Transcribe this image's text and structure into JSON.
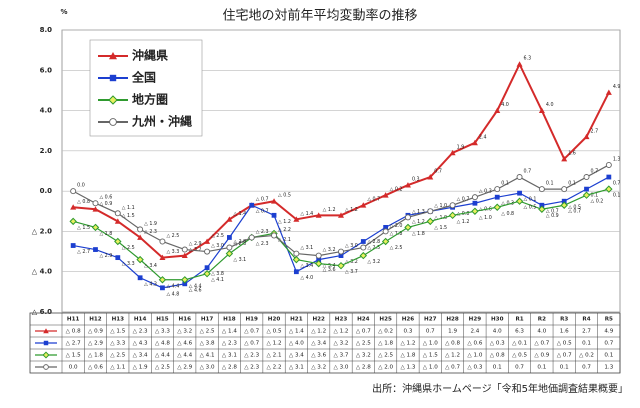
{
  "chart_data": {
    "type": "line",
    "title": "住宅地の対前年平均変動率の推移",
    "y_unit": "%",
    "source": "出所：沖縄県ホームページ「令和5年地価調査結果概要」",
    "categories": [
      "H11",
      "H12",
      "H13",
      "H14",
      "H15",
      "H16",
      "H17",
      "H18",
      "H19",
      "H20",
      "H21",
      "H22",
      "H23",
      "H24",
      "H25",
      "H26",
      "H27",
      "H28",
      "H29",
      "H30",
      "R1",
      "R2",
      "R3",
      "R4",
      "R5"
    ],
    "ylim": [
      -6,
      8
    ],
    "yticks": [
      {
        "value": -6,
        "label": "△ 6.0"
      },
      {
        "value": -4,
        "label": "△ 4.0"
      },
      {
        "value": -2,
        "label": "△ 2.0"
      },
      {
        "value": 0,
        "label": "0.0"
      },
      {
        "value": 2,
        "label": "2.0"
      },
      {
        "value": 4,
        "label": "4.0"
      },
      {
        "value": 6,
        "label": "6.0"
      },
      {
        "value": 8,
        "label": "8.0"
      }
    ],
    "grid": true,
    "series": [
      {
        "name": "沖縄県",
        "color": "#d42a2a",
        "marker": "triangle",
        "values": [
          -0.8,
          -0.9,
          -1.5,
          -2.3,
          -3.3,
          -3.2,
          -2.5,
          -1.4,
          -0.7,
          -0.5,
          -1.4,
          -1.2,
          -1.2,
          -0.7,
          -0.2,
          0.3,
          0.7,
          1.9,
          2.4,
          4.0,
          6.3,
          4.0,
          1.6,
          2.7,
          4.9
        ],
        "value_labels": [
          "△ 0.8",
          "△ 0.9",
          "△ 1.5",
          "△ 2.3",
          "△ 3.3",
          "△ 3.2",
          "△ 2.5",
          "△ 1.4",
          "△ 0.7",
          "△ 0.5",
          "△ 1.4",
          "△ 1.2",
          "△ 1.2",
          "△ 0.7",
          "△ 0.2",
          "0.3",
          "0.7",
          "1.9",
          "2.4",
          "4.0",
          "6.3",
          "4.0",
          "1.6",
          "2.7",
          "4.9"
        ]
      },
      {
        "name": "全国",
        "color": "#1c3fd0",
        "marker": "square",
        "values": [
          -2.7,
          -2.9,
          -3.3,
          -4.3,
          -4.8,
          -4.6,
          -3.8,
          -2.3,
          -0.7,
          -1.2,
          -4.0,
          -3.4,
          -3.2,
          -2.5,
          -1.8,
          -1.2,
          -1.0,
          -0.8,
          -0.6,
          -0.3,
          -0.1,
          -0.7,
          -0.5,
          0.1,
          0.7
        ],
        "value_labels": [
          "△ 2.7",
          "△ 2.9",
          "△ 3.3",
          "△ 4.3",
          "△ 4.8",
          "△ 4.6",
          "△ 3.8",
          "△ 2.3",
          "△ 0.7",
          "△ 1.2",
          "△ 4.0",
          "△ 3.4",
          "△ 3.2",
          "△ 2.5",
          "△ 1.8",
          "△ 1.2",
          "△ 1.0",
          "△ 0.8",
          "△ 0.6",
          "△ 0.3",
          "△ 0.1",
          "△ 0.7",
          "△ 0.5",
          "0.1",
          "0.7"
        ]
      },
      {
        "name": "地方圏",
        "color": "#2f9a2f",
        "marker": "diamond",
        "values": [
          -1.5,
          -1.8,
          -2.5,
          -3.4,
          -4.4,
          -4.4,
          -4.1,
          -3.1,
          -2.3,
          -2.1,
          -3.4,
          -3.6,
          -3.7,
          -3.2,
          -2.5,
          -1.8,
          -1.5,
          -1.2,
          -1.0,
          -0.8,
          -0.5,
          -0.9,
          -0.7,
          -0.2,
          0.1
        ],
        "value_labels": [
          "△ 1.5",
          "△ 1.8",
          "△ 2.5",
          "△ 3.4",
          "△ 4.4",
          "△ 4.4",
          "△ 4.1",
          "△ 3.1",
          "△ 2.3",
          "△ 2.1",
          "△ 3.4",
          "△ 3.6",
          "△ 3.7",
          "△ 3.2",
          "△ 2.5",
          "△ 1.8",
          "△ 1.5",
          "△ 1.2",
          "△ 1.0",
          "△ 0.8",
          "△ 0.5",
          "△ 0.9",
          "△ 0.7",
          "△ 0.2",
          "0.1"
        ]
      },
      {
        "name": "九州・沖縄",
        "color": "#666666",
        "marker": "circle",
        "values": [
          0.0,
          -0.6,
          -1.1,
          -1.9,
          -2.5,
          -2.9,
          -3.0,
          -2.8,
          -2.3,
          -2.2,
          -3.1,
          -3.2,
          -3.0,
          -2.8,
          -2.0,
          -1.3,
          -1.0,
          -0.7,
          -0.3,
          0.1,
          0.7,
          0.1,
          0.1,
          0.7,
          1.3
        ],
        "value_labels": [
          "0.0",
          "△ 0.6",
          "△ 1.1",
          "△ 1.9",
          "△ 2.5",
          "△ 2.9",
          "△ 3.0",
          "△ 2.8",
          "△ 2.3",
          "△ 2.2",
          "△ 3.1",
          "△ 3.2",
          "△ 3.0",
          "△ 2.8",
          "△ 2.0",
          "△ 1.3",
          "△ 1.0",
          "△ 0.7",
          "△ 0.3",
          "0.1",
          "0.7",
          "0.1",
          "0.1",
          "0.7",
          "1.3"
        ]
      }
    ]
  }
}
